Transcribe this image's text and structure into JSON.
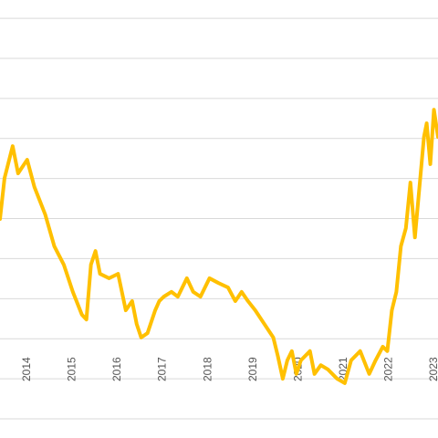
{
  "chart_data": {
    "type": "line",
    "x": [
      2013.4,
      2013.5,
      2013.68,
      2013.8,
      2014.0,
      2014.16,
      2014.4,
      2014.6,
      2014.81,
      2015.01,
      2015.21,
      2015.31,
      2015.41,
      2015.51,
      2015.61,
      2015.81,
      2016.01,
      2016.18,
      2016.32,
      2016.42,
      2016.52,
      2016.66,
      2016.83,
      2016.92,
      2017.02,
      2017.19,
      2017.33,
      2017.53,
      2017.67,
      2017.83,
      2018.03,
      2018.23,
      2018.44,
      2018.6,
      2018.74,
      2018.88,
      2019.04,
      2019.24,
      2019.44,
      2019.54,
      2019.65,
      2019.75,
      2019.85,
      2019.95,
      2020.05,
      2020.25,
      2020.35,
      2020.49,
      2020.65,
      2020.85,
      2021.02,
      2021.16,
      2021.36,
      2021.56,
      2021.7,
      2021.86,
      2021.96,
      2022.06,
      2022.16,
      2022.26,
      2022.37,
      2022.47,
      2022.57,
      2022.67,
      2022.77,
      2022.83,
      2022.91,
      2022.99,
      2023.08
    ],
    "values": [
      4.99,
      6.01,
      6.81,
      6.13,
      6.47,
      5.79,
      5.1,
      4.31,
      3.85,
      3.17,
      2.6,
      2.48,
      3.85,
      4.19,
      3.62,
      3.51,
      3.62,
      2.71,
      2.94,
      2.37,
      2.03,
      2.14,
      2.71,
      2.94,
      3.05,
      3.17,
      3.05,
      3.51,
      3.17,
      3.05,
      3.51,
      3.39,
      3.28,
      2.94,
      3.17,
      2.94,
      2.71,
      2.37,
      2.03,
      1.57,
      1.0,
      1.46,
      1.69,
      1.12,
      1.46,
      1.69,
      1.12,
      1.34,
      1.23,
      1.0,
      0.89,
      1.46,
      1.69,
      1.12,
      1.46,
      1.8,
      1.69,
      2.71,
      3.17,
      4.31,
      4.76,
      5.9,
      4.53,
      5.79,
      7.04,
      7.38,
      6.36,
      7.72,
      7.04
    ],
    "color": "#ffc000",
    "xlim": [
      2013.4,
      2023.08
    ],
    "xticks": [
      2014,
      2015,
      2016,
      2017,
      2018,
      2019,
      2020,
      2021,
      2022,
      2023
    ],
    "ylim": [
      -0.48,
      10.46
    ],
    "yticks": [
      0,
      1,
      2,
      3,
      4,
      5,
      6,
      7,
      8,
      9,
      10
    ],
    "grid": true
  }
}
